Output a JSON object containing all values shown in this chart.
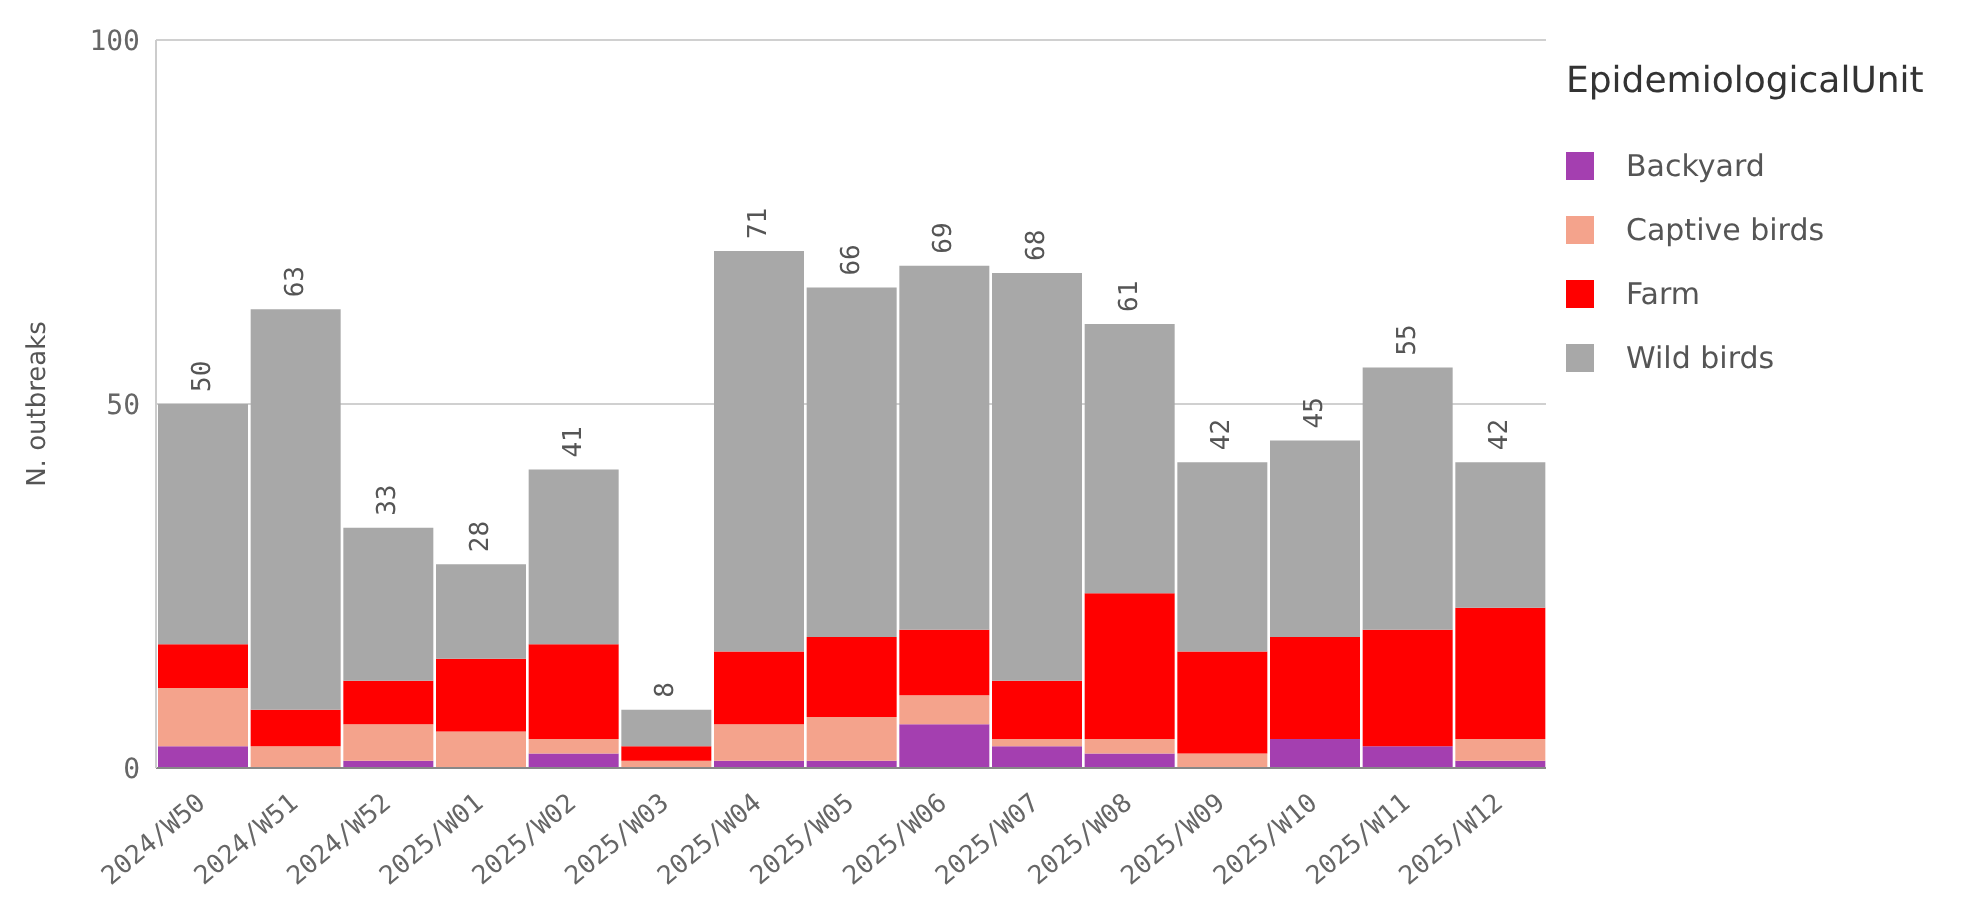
{
  "chart_data": {
    "type": "bar",
    "stacked": true,
    "ylabel": "N. outbreaks",
    "legend_title": "EpidemiologicalUnit",
    "categories": [
      "2024/W50",
      "2024/W51",
      "2024/W52",
      "2025/W01",
      "2025/W02",
      "2025/W03",
      "2025/W04",
      "2025/W05",
      "2025/W06",
      "2025/W07",
      "2025/W08",
      "2025/W09",
      "2025/W10",
      "2025/W11",
      "2025/W12"
    ],
    "series": [
      {
        "name": "Backyard",
        "color": "#a43fb0",
        "values": [
          3,
          0,
          1,
          0,
          2,
          0,
          1,
          1,
          6,
          3,
          2,
          0,
          4,
          3,
          1
        ]
      },
      {
        "name": "Captive birds",
        "color": "#f4a38c",
        "values": [
          8,
          3,
          5,
          5,
          2,
          1,
          5,
          6,
          4,
          1,
          2,
          2,
          0,
          0,
          3
        ]
      },
      {
        "name": "Farm",
        "color": "#ff0000",
        "values": [
          6,
          5,
          6,
          10,
          13,
          2,
          10,
          11,
          9,
          8,
          20,
          14,
          14,
          16,
          18
        ]
      },
      {
        "name": "Wild birds",
        "color": "#a8a8a8",
        "values": [
          33,
          55,
          21,
          13,
          24,
          5,
          55,
          48,
          50,
          56,
          37,
          26,
          27,
          36,
          20
        ]
      }
    ],
    "totals": [
      "50",
      "63",
      "33",
      "28",
      "41",
      "8",
      "71",
      "66",
      "69",
      "68",
      "61",
      "42",
      "45",
      "55",
      "42"
    ],
    "ylim": [
      0,
      100
    ],
    "yticks": [
      0,
      50,
      100
    ],
    "grid": "y",
    "legend": "right"
  }
}
